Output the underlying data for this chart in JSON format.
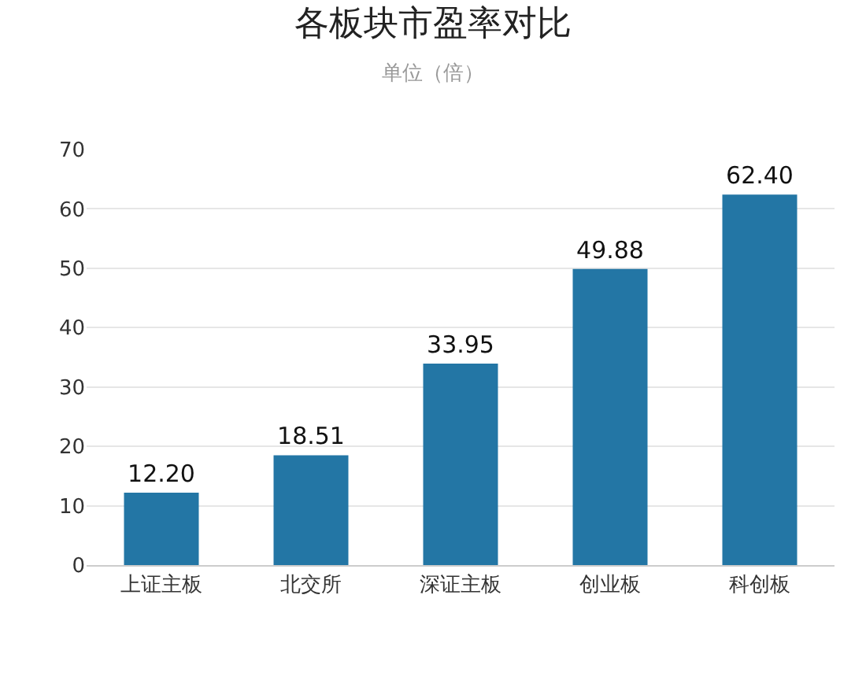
{
  "chart_data": {
    "type": "bar",
    "title": "各板块市盈率对比",
    "subtitle": "单位（倍）",
    "categories": [
      "上证主板",
      "北交所",
      "深证主板",
      "创业板",
      "科创板"
    ],
    "values": [
      12.2,
      18.51,
      33.95,
      49.88,
      62.4
    ],
    "value_labels": [
      "12.20",
      "18.51",
      "33.95",
      "49.88",
      "62.40"
    ],
    "color": "#2376a5",
    "ylim": [
      0,
      70
    ],
    "yticks": [
      0,
      10,
      20,
      30,
      40,
      50,
      60,
      70
    ],
    "grid": "y",
    "legend": false
  }
}
